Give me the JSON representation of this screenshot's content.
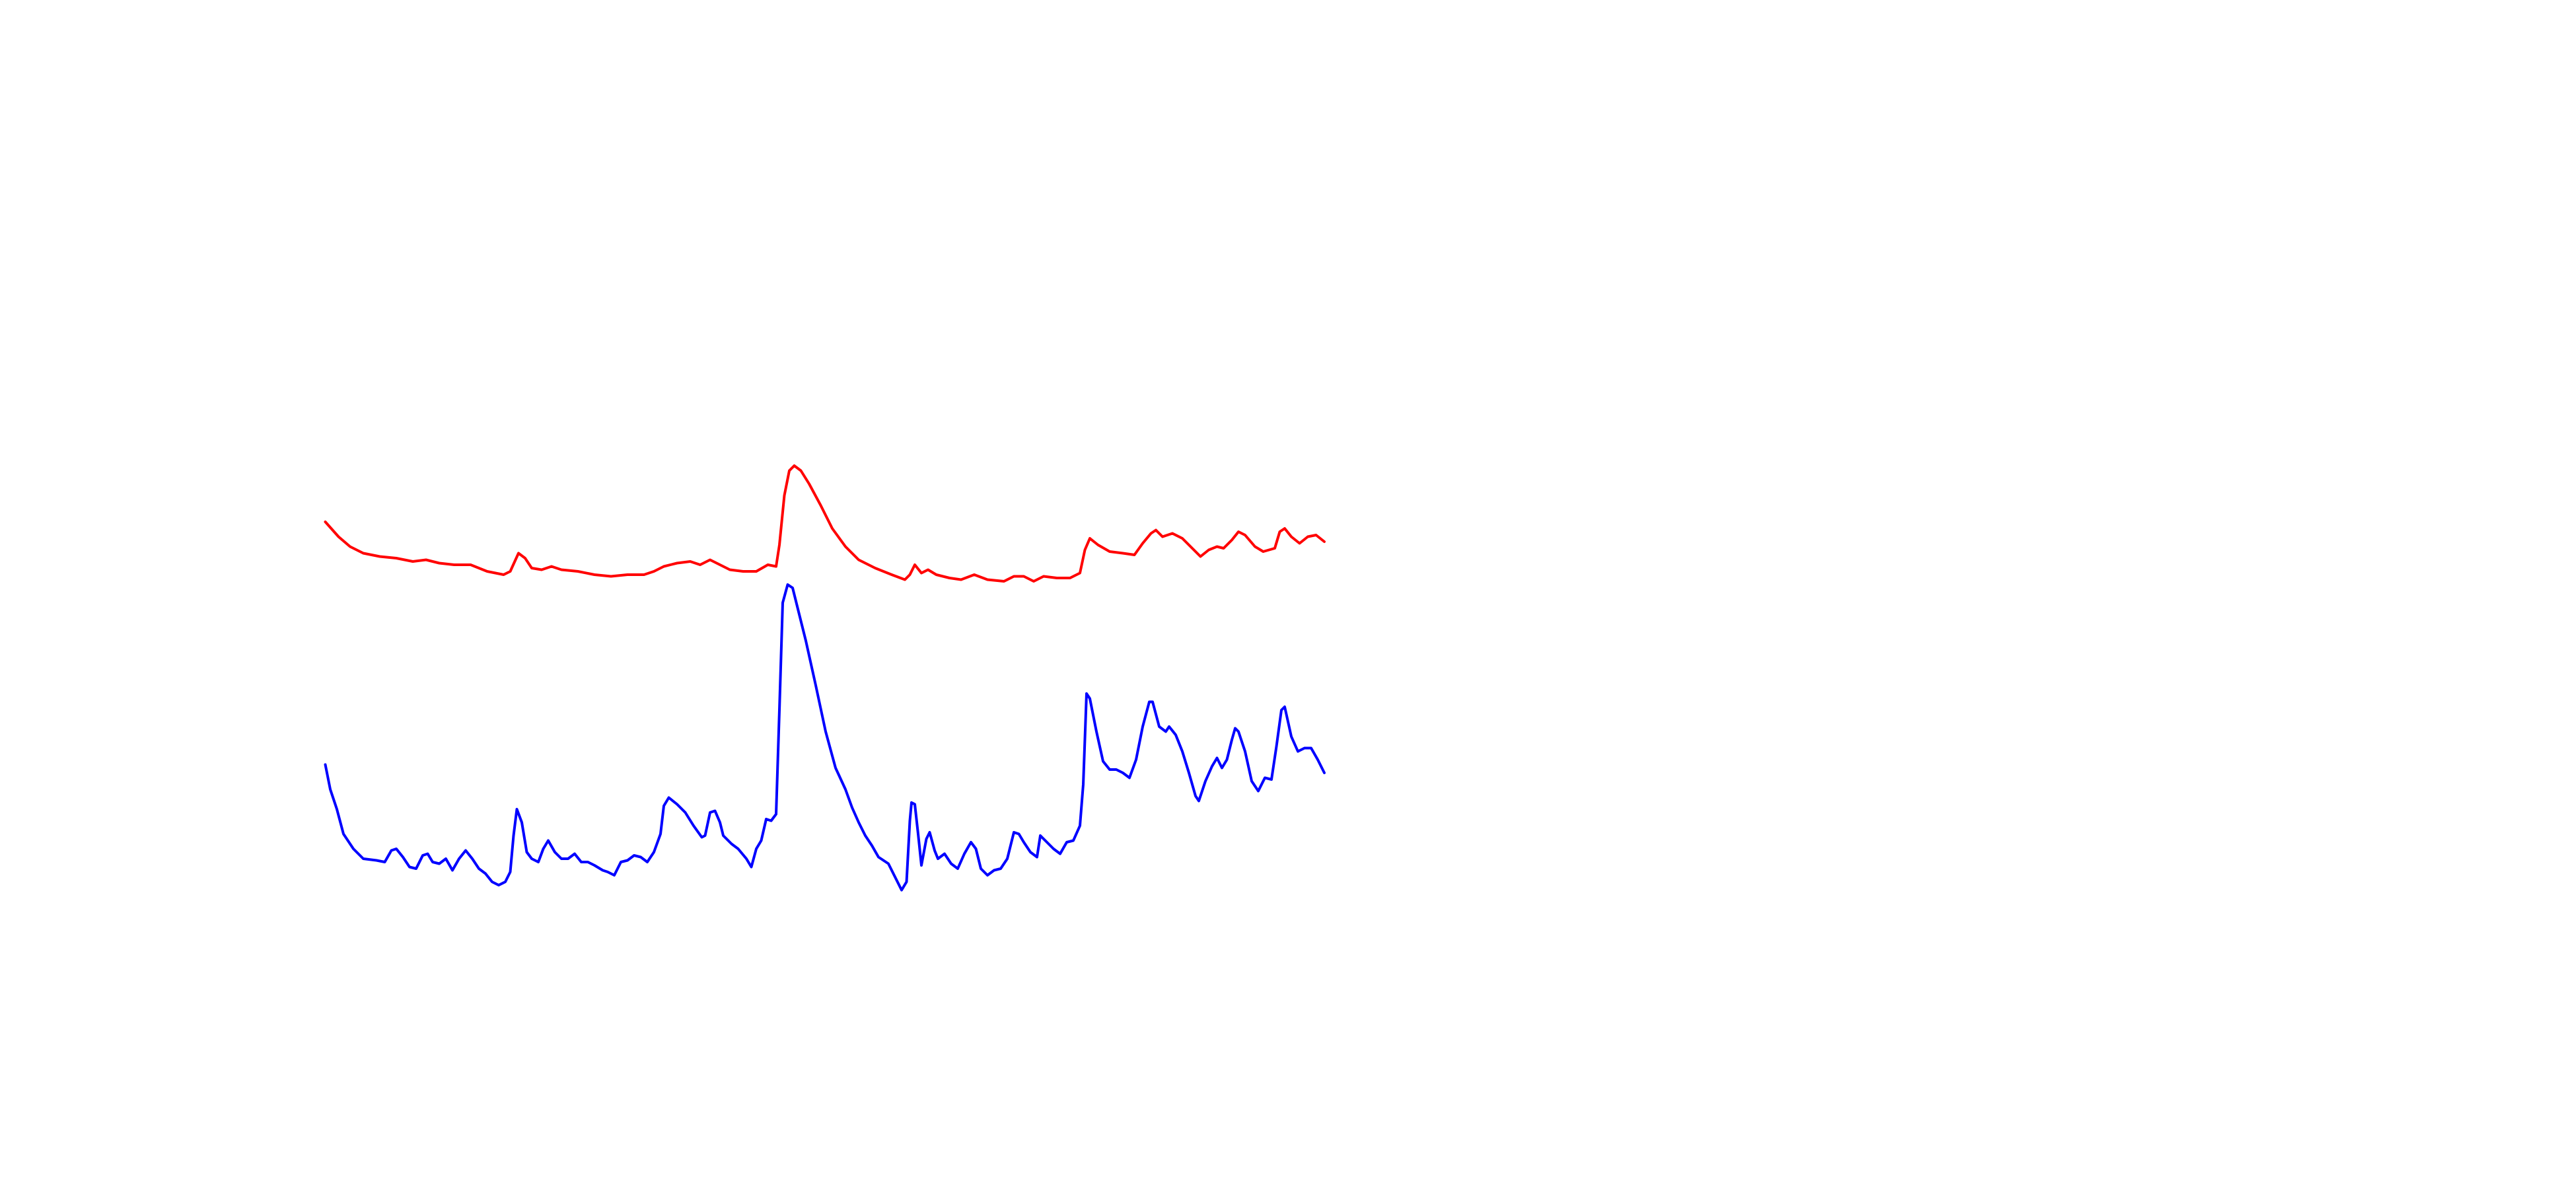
{
  "chart_data": {
    "type": "line",
    "xlim": [
      0,
      605
    ],
    "ylim": [
      0,
      300
    ],
    "series": [
      {
        "color": "#ff0000",
        "x": [
          0,
          8,
          15,
          23,
          33,
          43,
          53,
          61,
          69,
          78,
          88,
          98,
          108,
          112,
          117,
          121,
          125,
          131,
          137,
          143,
          153,
          163,
          173,
          183,
          193,
          199,
          205,
          213,
          221,
          227,
          233,
          239,
          245,
          253,
          261,
          268,
          273,
          275,
          278,
          281,
          284,
          288,
          293,
          300,
          307,
          315,
          323,
          333,
          343,
          351,
          354,
          357,
          361,
          365,
          370,
          378,
          385,
          393,
          401,
          411,
          417,
          423,
          429,
          435,
          443,
          451,
          457,
          460,
          463,
          468,
          475,
          483,
          490,
          495,
          500,
          503,
          507,
          513,
          519,
          525,
          530,
          535,
          540,
          544,
          549,
          553,
          557,
          563,
          568,
          575,
          578,
          581,
          585,
          590,
          595,
          600,
          605
        ],
        "values": [
          244,
          235,
          229,
          225,
          223,
          222,
          220,
          221,
          219,
          218,
          218,
          214,
          212,
          214,
          225,
          222,
          216,
          215,
          217,
          215,
          214,
          212,
          211,
          212,
          212,
          214,
          217,
          219,
          220,
          218,
          221,
          218,
          215,
          214,
          214,
          218,
          217,
          230,
          260,
          275,
          278,
          275,
          267,
          254,
          240,
          229,
          221,
          216,
          212,
          209,
          212,
          218,
          213,
          215,
          212,
          210,
          209,
          212,
          209,
          208,
          211,
          211,
          208,
          211,
          210,
          210,
          213,
          227,
          234,
          230,
          226,
          225,
          224,
          231,
          237,
          239,
          235,
          237,
          234,
          228,
          223,
          227,
          229,
          228,
          233,
          238,
          236,
          229,
          226,
          228,
          238,
          240,
          235,
          231,
          235,
          236,
          232
        ]
      },
      {
        "color": "#0000ff",
        "x": [
          0,
          3,
          7,
          11,
          17,
          23,
          31,
          36,
          40,
          43,
          47,
          51,
          55,
          59,
          62,
          65,
          69,
          73,
          77,
          81,
          85,
          89,
          93,
          97,
          101,
          105,
          109,
          112,
          114,
          116,
          119,
          122,
          125,
          129,
          132,
          135,
          139,
          143,
          147,
          151,
          155,
          159,
          163,
          168,
          171,
          175,
          179,
          183,
          187,
          191,
          195,
          199,
          203,
          205,
          208,
          213,
          218,
          223,
          228,
          230,
          233,
          236,
          239,
          241,
          246,
          250,
          255,
          258,
          261,
          264,
          267,
          270,
          273,
          275,
          277,
          280,
          283,
          286,
          291,
          297,
          303,
          309,
          315,
          319,
          323,
          327,
          331,
          335,
          341,
          345,
          349,
          352,
          354,
          355,
          357,
          359,
          361,
          364,
          366,
          369,
          371,
          375,
          379,
          383,
          387,
          391,
          394,
          397,
          401,
          405,
          409,
          413,
          417,
          420,
          423,
          427,
          431,
          433,
          437,
          441,
          445,
          449,
          453,
          457,
          459,
          461,
          463,
          467,
          471,
          475,
          479,
          483,
          487,
          491,
          495,
          499,
          501,
          505,
          509,
          511,
          515,
          519,
          523,
          527,
          529,
          533,
          537,
          540,
          543,
          546,
          549,
          551,
          553,
          557,
          561,
          565,
          569,
          573,
          576,
          579,
          581,
          585,
          589,
          593,
          597,
          601,
          605
        ],
        "values": [
          97,
          82,
          70,
          55,
          46,
          40,
          39,
          38,
          45,
          46,
          41,
          35,
          34,
          42,
          43,
          38,
          37,
          40,
          33,
          40,
          45,
          40,
          34,
          31,
          26,
          24,
          26,
          32,
          54,
          70,
          62,
          44,
          40,
          38,
          46,
          51,
          44,
          40,
          40,
          43,
          38,
          38,
          36,
          33,
          32,
          30,
          38,
          39,
          42,
          41,
          38,
          44,
          55,
          72,
          77,
          73,
          68,
          60,
          53,
          54,
          68,
          69,
          62,
          54,
          49,
          46,
          40,
          35,
          46,
          51,
          64,
          63,
          67,
          130,
          195,
          206,
          204,
          192,
          172,
          145,
          117,
          95,
          82,
          71,
          62,
          54,
          48,
          41,
          37,
          29,
          21,
          26,
          63,
          74,
          73,
          55,
          36,
          52,
          56,
          45,
          40,
          43,
          37,
          34,
          43,
          50,
          46,
          34,
          30,
          33,
          34,
          40,
          56,
          55,
          50,
          44,
          41,
          54,
          50,
          46,
          43,
          50,
          51,
          60,
          85,
          140,
          137,
          117,
          99,
          94,
          94,
          92,
          89,
          100,
          120,
          135,
          135,
          120,
          117,
          120,
          115,
          105,
          92,
          78,
          75,
          87,
          96,
          101,
          95,
          100,
          112,
          119,
          117,
          105,
          87,
          81,
          89,
          88,
          108,
          130,
          132,
          114,
          105,
          107,
          107,
          100,
          92
        ]
      }
    ]
  }
}
